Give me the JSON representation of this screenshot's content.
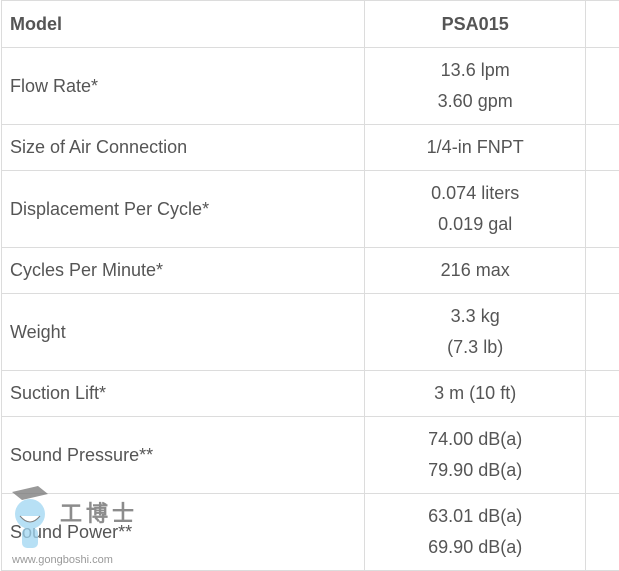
{
  "header": {
    "label": "Model",
    "model": "PSA015"
  },
  "rows": [
    {
      "label": "Flow Rate*",
      "values": [
        "13.6 lpm",
        "3.60 gpm"
      ]
    },
    {
      "label": "Size of Air Connection",
      "values": [
        "1/4-in FNPT"
      ]
    },
    {
      "label": "Displacement Per Cycle*",
      "values": [
        "0.074 liters",
        "0.019 gal"
      ]
    },
    {
      "label": "Cycles Per Minute*",
      "values": [
        "216 max"
      ]
    },
    {
      "label": "Weight",
      "values": [
        "3.3 kg",
        "(7.3 lb)"
      ]
    },
    {
      "label": "Suction Lift*",
      "values": [
        "3 m (10 ft)"
      ]
    },
    {
      "label": "Sound Pressure**",
      "values": [
        "74.00 dB(a)",
        "79.90 dB(a)"
      ]
    },
    {
      "label": "Sound Power**",
      "values": [
        "63.01 dB(a)",
        "69.90 dB(a)"
      ]
    }
  ],
  "watermark": {
    "brand": "工博士",
    "url": "www.gongboshi.com"
  }
}
